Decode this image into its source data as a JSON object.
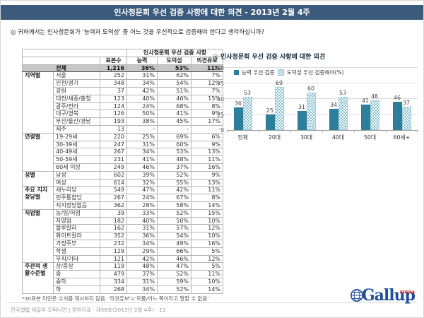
{
  "header": {
    "title": "인사청문회 우선 검증 사항에 대한 의견 - 2013년 2월 4주"
  },
  "question": "◎  귀하께서는 인사청문회가 '능력과 도덕성' 중 어느 것을 우선적으로 검증해야 한다고 생각하십니까?",
  "table": {
    "group_header": "인사청문회 우선 검증 사항",
    "columns": [
      "표본수",
      "능력",
      "도덕성",
      "의견유보"
    ],
    "total_row": {
      "label": "전체",
      "n": "1,216",
      "values": [
        "36%",
        "53%",
        "11%"
      ]
    },
    "sections": [
      {
        "group": "지역별",
        "rows": [
          {
            "label": "서울",
            "n": "252",
            "values": [
              "31%",
              "62%",
              "7%"
            ]
          },
          {
            "label": "인천/경기",
            "n": "348",
            "values": [
              "34%",
              "54%",
              "12%"
            ]
          },
          {
            "label": "강원",
            "n": "37",
            "values": [
              "42%",
              "51%",
              "7%"
            ]
          },
          {
            "label": "대전/세종/충청",
            "n": "123",
            "values": [
              "40%",
              "46%",
              "15%"
            ]
          },
          {
            "label": "광주/전라",
            "n": "124",
            "values": [
              "24%",
              "68%",
              "8%"
            ]
          },
          {
            "label": "대구/경북",
            "n": "126",
            "values": [
              "50%",
              "41%",
              "9%"
            ]
          },
          {
            "label": "부산/울산/경남",
            "n": "193",
            "values": [
              "38%",
              "45%",
              "17%"
            ]
          },
          {
            "label": "제주",
            "n": "13",
            "values": [
              "-",
              "-",
              "-"
            ]
          }
        ]
      },
      {
        "group": "연령별",
        "rows": [
          {
            "label": "19-29세",
            "n": "220",
            "values": [
              "25%",
              "69%",
              "6%"
            ]
          },
          {
            "label": "30-39세",
            "n": "247",
            "values": [
              "31%",
              "60%",
              "9%"
            ]
          },
          {
            "label": "40-49세",
            "n": "267",
            "values": [
              "34%",
              "53%",
              "13%"
            ]
          },
          {
            "label": "50-59세",
            "n": "231",
            "values": [
              "41%",
              "48%",
              "11%"
            ]
          },
          {
            "label": "60세 이상",
            "n": "249",
            "values": [
              "46%",
              "37%",
              "16%"
            ]
          }
        ]
      },
      {
        "group": "성별",
        "rows": [
          {
            "label": "남성",
            "n": "602",
            "values": [
              "39%",
              "52%",
              "9%"
            ]
          },
          {
            "label": "여성",
            "n": "614",
            "values": [
              "32%",
              "55%",
              "13%"
            ]
          }
        ]
      },
      {
        "group": "주요 지지 정당별",
        "rows": [
          {
            "label": "새누리당",
            "n": "549",
            "values": [
              "47%",
              "42%",
              "11%"
            ]
          },
          {
            "label": "민주통합당",
            "n": "267",
            "values": [
              "24%",
              "67%",
              "8%"
            ]
          },
          {
            "label": "지지정당없음",
            "n": "362",
            "values": [
              "28%",
              "58%",
              "14%"
            ]
          }
        ]
      },
      {
        "group": "직업별",
        "rows": [
          {
            "label": "농/임/어업",
            "n": "39",
            "values": [
              "33%",
              "52%",
              "15%"
            ]
          },
          {
            "label": "자영업",
            "n": "182",
            "values": [
              "40%",
              "50%",
              "10%"
            ]
          },
          {
            "label": "블루칼라",
            "n": "162",
            "values": [
              "31%",
              "57%",
              "12%"
            ]
          },
          {
            "label": "화이트칼라",
            "n": "352",
            "values": [
              "36%",
              "54%",
              "10%"
            ]
          },
          {
            "label": "가정주부",
            "n": "232",
            "values": [
              "34%",
              "49%",
              "16%"
            ]
          },
          {
            "label": "학생",
            "n": "129",
            "values": [
              "29%",
              "66%",
              "5%"
            ]
          },
          {
            "label": "무직/기타",
            "n": "121",
            "values": [
              "42%",
              "46%",
              "12%"
            ]
          }
        ]
      },
      {
        "group": "주관적 생활수준별",
        "rows": [
          {
            "label": "상/중상",
            "n": "119",
            "values": [
              "48%",
              "47%",
              "5%"
            ]
          },
          {
            "label": "중",
            "n": "479",
            "values": [
              "37%",
              "52%",
              "11%"
            ]
          },
          {
            "label": "중하",
            "n": "334",
            "values": [
              "31%",
              "59%",
              "10%"
            ]
          },
          {
            "label": "하",
            "n": "268",
            "values": [
              "34%",
              "52%",
              "14%"
            ]
          }
        ]
      }
    ],
    "footnote": "*30표본 미만은 수치를 제시하지 않음. '의견유보'='모름/어느 쪽이라고 말할 수 없음'"
  },
  "chart": {
    "title": "◎  인사청문회 우선 검증 사항에 대한 의견"
  },
  "chart_data": {
    "type": "bar",
    "categories": [
      "전체",
      "20대",
      "30대",
      "40대",
      "50대",
      "60세+"
    ],
    "series": [
      {
        "name": "능력 우선 검증",
        "values": [
          36,
          25,
          31,
          34,
          41,
          46
        ]
      },
      {
        "name": "도덕성 우선 검증해야(%)",
        "values": [
          53,
          69,
          60,
          53,
          48,
          37
        ]
      }
    ],
    "ylim": [
      0,
      100
    ],
    "yticks": [
      0,
      25,
      50,
      75,
      100
    ],
    "grid": true,
    "legend_position": "top-left-inside",
    "colors": {
      "series0": "#2d7e9b",
      "series1_pattern": "#85bfd1"
    }
  },
  "footer": {
    "source": "한국갤럽 데일리 오피니언 | 정치지표 · 제56호(2013년 2월 4주) · 11"
  },
  "logo": {
    "text": "Gallup",
    "korea": "KOREA"
  },
  "colors": {
    "header_bar": "#3b5a7c",
    "total_row_bg": "#c7c7c7"
  }
}
